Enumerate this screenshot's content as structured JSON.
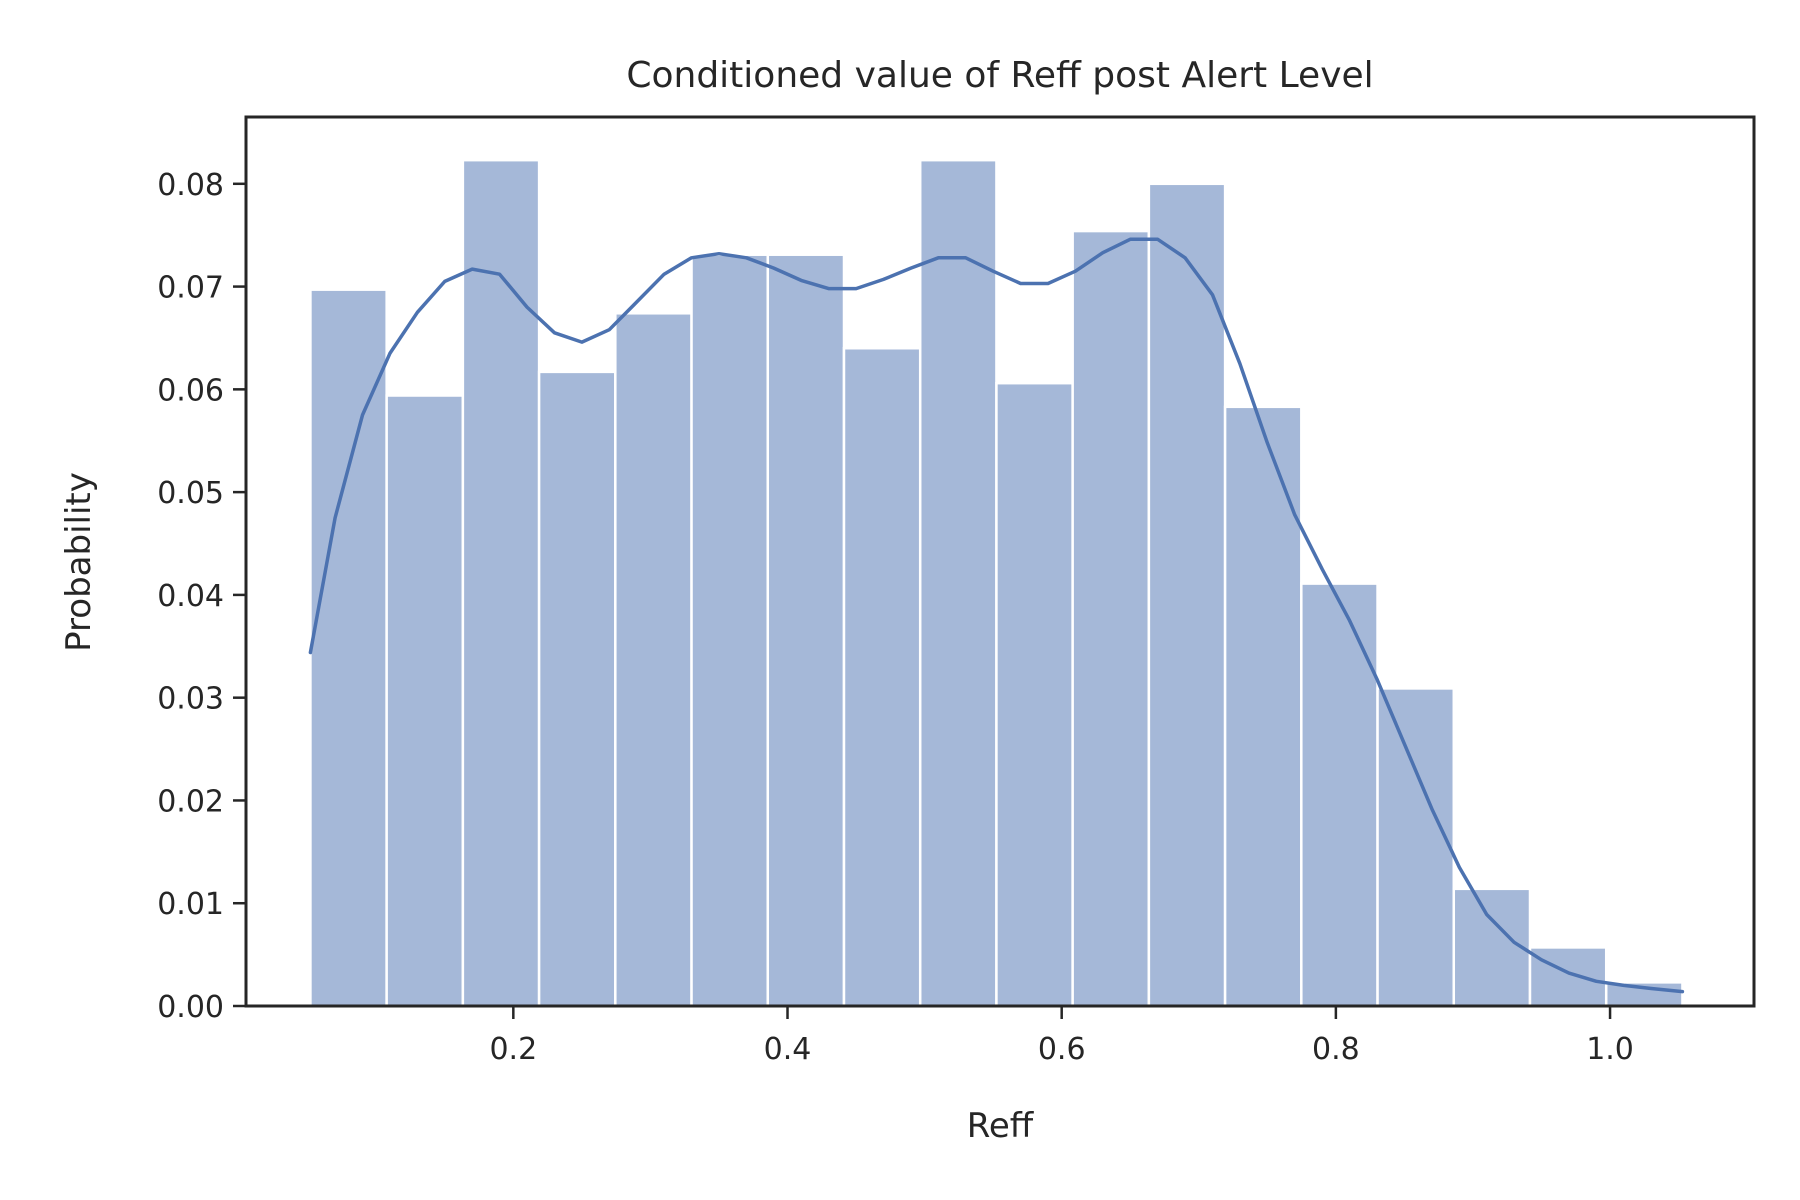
{
  "chart_data": {
    "type": "bar",
    "title": "Conditioned value of Reff post Alert Level",
    "xlabel": "Reff",
    "ylabel": "Probability",
    "xlim": [
      0.005,
      1.105
    ],
    "ylim": [
      0.0,
      0.0865
    ],
    "xticks": [
      0.2,
      0.4,
      0.6,
      0.8,
      1.0
    ],
    "xtick_labels": [
      "0.2",
      "0.4",
      "0.6",
      "0.8",
      "1.0"
    ],
    "yticks": [
      0.0,
      0.01,
      0.02,
      0.03,
      0.04,
      0.05,
      0.06,
      0.07,
      0.08
    ],
    "ytick_labels": [
      "0.00",
      "0.01",
      "0.02",
      "0.03",
      "0.04",
      "0.05",
      "0.06",
      "0.07",
      "0.08"
    ],
    "bin_edges": [
      0.052,
      0.1076,
      0.1632,
      0.2188,
      0.2744,
      0.33,
      0.3856,
      0.4412,
      0.4968,
      0.5524,
      0.608,
      0.6636,
      0.7192,
      0.7748,
      0.8304,
      0.886,
      0.9416,
      0.9972,
      1.0528
    ],
    "values": [
      0.0697,
      0.0594,
      0.0823,
      0.0617,
      0.0674,
      0.0731,
      0.0731,
      0.064,
      0.0823,
      0.0606,
      0.0754,
      0.08,
      0.0583,
      0.0411,
      0.0309,
      0.0114,
      0.0057,
      0.0023
    ],
    "bar_color": "#a5b8d8",
    "kde": {
      "color": "#4c72b0",
      "x": [
        0.052,
        0.07,
        0.09,
        0.11,
        0.13,
        0.15,
        0.17,
        0.19,
        0.21,
        0.23,
        0.25,
        0.27,
        0.29,
        0.31,
        0.33,
        0.35,
        0.37,
        0.39,
        0.41,
        0.43,
        0.45,
        0.47,
        0.49,
        0.51,
        0.53,
        0.55,
        0.57,
        0.59,
        0.61,
        0.63,
        0.65,
        0.67,
        0.69,
        0.71,
        0.73,
        0.75,
        0.77,
        0.79,
        0.81,
        0.83,
        0.85,
        0.87,
        0.89,
        0.91,
        0.93,
        0.95,
        0.97,
        0.99,
        1.01,
        1.03,
        1.0528
      ],
      "y": [
        0.0344,
        0.0475,
        0.0575,
        0.0635,
        0.0675,
        0.0705,
        0.0717,
        0.0712,
        0.068,
        0.0655,
        0.0646,
        0.0658,
        0.0685,
        0.0712,
        0.0728,
        0.0732,
        0.0728,
        0.0718,
        0.0706,
        0.0698,
        0.0698,
        0.0707,
        0.0718,
        0.0728,
        0.0728,
        0.0715,
        0.0703,
        0.0703,
        0.0715,
        0.0733,
        0.0746,
        0.0746,
        0.0728,
        0.0692,
        0.0625,
        0.0548,
        0.0478,
        0.0425,
        0.0375,
        0.0318,
        0.0255,
        0.0192,
        0.0135,
        0.0089,
        0.0062,
        0.0045,
        0.0032,
        0.0024,
        0.002,
        0.0017,
        0.0014
      ]
    }
  }
}
